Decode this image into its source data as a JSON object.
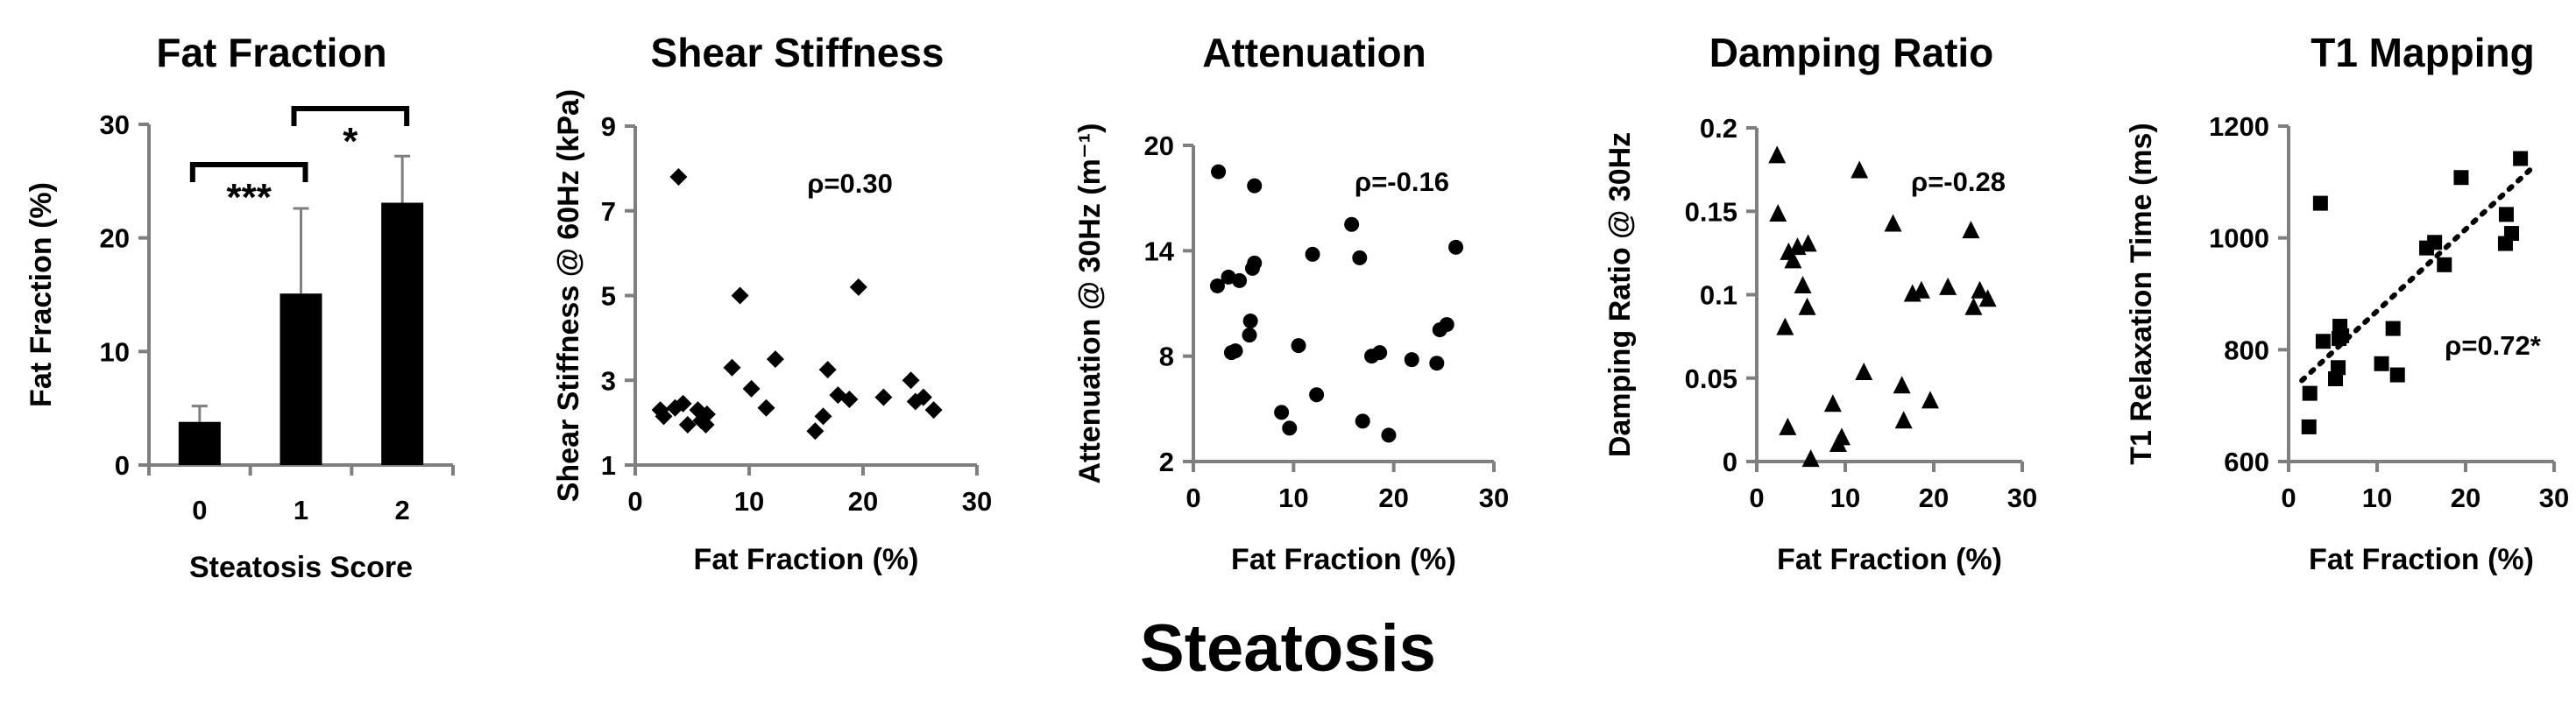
{
  "figure_title": "Steatosis",
  "colors": {
    "marker": "#000000",
    "axis": "#7f7f7f",
    "errorbar": "#7f7f7f"
  },
  "chart_data": [
    {
      "id": "fat-fraction",
      "type": "bar",
      "title": "Fat Fraction",
      "xlabel": "Steatosis Score",
      "ylabel": "Fat Fraction (%)",
      "categories": [
        "0",
        "1",
        "2"
      ],
      "values": [
        3.8,
        15.1,
        23.1
      ],
      "error_upper": [
        5.2,
        22.6,
        27.2
      ],
      "ylim": [
        0,
        30
      ],
      "yticks": [
        "0",
        "10",
        "20",
        "30"
      ],
      "significance": [
        {
          "pair": [
            "0",
            "1"
          ],
          "label": "***"
        },
        {
          "pair": [
            "1",
            "2"
          ],
          "label": "*"
        }
      ]
    },
    {
      "id": "shear-stiffness",
      "type": "scatter",
      "marker": "diamond",
      "title": "Shear Stiffness",
      "xlabel": "Fat Fraction (%)",
      "ylabel": "Shear Stiffness @ 60Hz (kPa)",
      "xlim": [
        0,
        30
      ],
      "ylim": [
        1,
        9
      ],
      "xticks": [
        "0",
        "10",
        "20",
        "30"
      ],
      "yticks": [
        "1",
        "3",
        "5",
        "7",
        "9"
      ],
      "annotation": "ρ=0.30",
      "points": [
        [
          2.2,
          2.3
        ],
        [
          2.5,
          2.15
        ],
        [
          3.5,
          2.35
        ],
        [
          3.8,
          7.8
        ],
        [
          4.2,
          2.45
        ],
        [
          4.6,
          1.95
        ],
        [
          5.5,
          2.3
        ],
        [
          5.8,
          2.05
        ],
        [
          6.2,
          1.95
        ],
        [
          6.3,
          2.2
        ],
        [
          8.5,
          3.3
        ],
        [
          9.2,
          5.0
        ],
        [
          10.2,
          2.8
        ],
        [
          11.5,
          2.35
        ],
        [
          12.3,
          3.5
        ],
        [
          15.8,
          1.8
        ],
        [
          16.5,
          2.15
        ],
        [
          16.9,
          3.25
        ],
        [
          17.8,
          2.65
        ],
        [
          18.8,
          2.55
        ],
        [
          19.6,
          5.2
        ],
        [
          21.8,
          2.6
        ],
        [
          24.2,
          3.0
        ],
        [
          24.6,
          2.5
        ],
        [
          25.3,
          2.6
        ],
        [
          26.2,
          2.3
        ]
      ]
    },
    {
      "id": "attenuation",
      "type": "scatter",
      "marker": "circle",
      "title": "Attenuation",
      "xlabel": "Fat Fraction (%)",
      "ylabel": "Attenuation @ 30Hz (m⁻¹)",
      "xlim": [
        0,
        30
      ],
      "ylim": [
        2,
        20
      ],
      "xticks": [
        "0",
        "10",
        "20",
        "30"
      ],
      "yticks": [
        "2",
        "8",
        "14",
        "20"
      ],
      "annotation": "ρ=-0.16",
      "points": [
        [
          2.5,
          18.5
        ],
        [
          2.4,
          12.0
        ],
        [
          3.5,
          12.5
        ],
        [
          3.8,
          8.2
        ],
        [
          4.2,
          8.3
        ],
        [
          4.6,
          12.3
        ],
        [
          5.6,
          9.2
        ],
        [
          5.7,
          10.0
        ],
        [
          5.9,
          13.0
        ],
        [
          6.1,
          13.3
        ],
        [
          6.1,
          17.7
        ],
        [
          8.8,
          4.8
        ],
        [
          9.6,
          3.9
        ],
        [
          10.5,
          8.6
        ],
        [
          11.9,
          13.8
        ],
        [
          12.3,
          5.8
        ],
        [
          15.8,
          15.5
        ],
        [
          16.6,
          13.6
        ],
        [
          16.9,
          4.3
        ],
        [
          17.8,
          8.0
        ],
        [
          18.6,
          8.2
        ],
        [
          19.5,
          3.5
        ],
        [
          21.8,
          7.8
        ],
        [
          24.3,
          7.6
        ],
        [
          24.6,
          9.5
        ],
        [
          25.3,
          9.8
        ],
        [
          26.2,
          14.2
        ]
      ]
    },
    {
      "id": "damping-ratio",
      "type": "scatter",
      "marker": "triangle",
      "title": "Damping Ratio",
      "xlabel": "Fat Fraction (%)",
      "ylabel": "Damping Ratio @ 30Hz",
      "xlim": [
        0,
        30
      ],
      "ylim": [
        0,
        0.2
      ],
      "xticks": [
        "0",
        "10",
        "20",
        "30"
      ],
      "yticks": [
        "0",
        "0.05",
        "0.1",
        "0.15",
        "0.2"
      ],
      "annotation": "ρ=-0.28",
      "points": [
        [
          2.3,
          0.183
        ],
        [
          2.4,
          0.148
        ],
        [
          3.2,
          0.08
        ],
        [
          3.5,
          0.02
        ],
        [
          3.6,
          0.125
        ],
        [
          4.1,
          0.12
        ],
        [
          4.6,
          0.128
        ],
        [
          5.2,
          0.105
        ],
        [
          5.7,
          0.092
        ],
        [
          5.8,
          0.13
        ],
        [
          6.1,
          0.001
        ],
        [
          8.6,
          0.034
        ],
        [
          9.2,
          0.01
        ],
        [
          9.6,
          0.014
        ],
        [
          11.6,
          0.174
        ],
        [
          12.1,
          0.053
        ],
        [
          15.4,
          0.142
        ],
        [
          16.4,
          0.045
        ],
        [
          16.6,
          0.024
        ],
        [
          17.6,
          0.1
        ],
        [
          18.6,
          0.102
        ],
        [
          19.6,
          0.036
        ],
        [
          21.6,
          0.104
        ],
        [
          24.2,
          0.138
        ],
        [
          24.5,
          0.092
        ],
        [
          25.2,
          0.102
        ],
        [
          26.1,
          0.097
        ]
      ]
    },
    {
      "id": "t1-mapping",
      "type": "scatter",
      "marker": "square",
      "title": "T1 Mapping",
      "xlabel": "Fat Fraction (%)",
      "ylabel": "T1 Relaxation Time (ms)",
      "xlim": [
        0,
        30
      ],
      "ylim": [
        600,
        1200
      ],
      "xticks": [
        "0",
        "10",
        "20",
        "30"
      ],
      "yticks": [
        "600",
        "800",
        "1000",
        "1200"
      ],
      "annotation": "ρ=0.72*",
      "trendline": {
        "x": [
          1.5,
          27.5
        ],
        "y": [
          745,
          1125
        ]
      },
      "points": [
        [
          2.3,
          662
        ],
        [
          2.4,
          722
        ],
        [
          3.6,
          1062
        ],
        [
          3.9,
          815
        ],
        [
          5.3,
          748
        ],
        [
          5.6,
          768
        ],
        [
          5.7,
          820
        ],
        [
          5.8,
          842
        ],
        [
          6.0,
          825
        ],
        [
          10.5,
          775
        ],
        [
          11.8,
          838
        ],
        [
          12.3,
          755
        ],
        [
          15.6,
          982
        ],
        [
          16.5,
          992
        ],
        [
          17.6,
          952
        ],
        [
          19.5,
          1108
        ],
        [
          24.5,
          990
        ],
        [
          24.6,
          1042
        ],
        [
          25.2,
          1008
        ],
        [
          26.2,
          1142
        ]
      ]
    }
  ]
}
